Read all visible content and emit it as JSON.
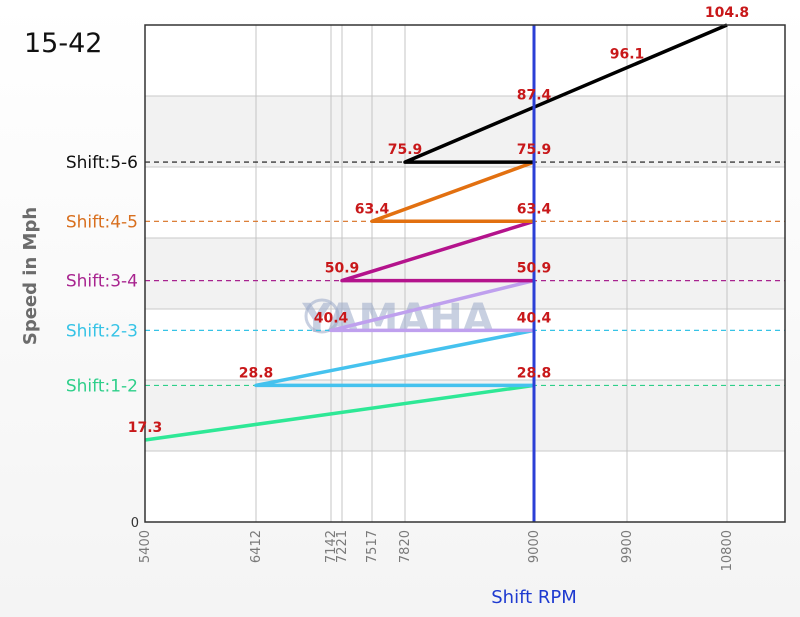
{
  "chart_data": {
    "type": "line",
    "title": "15-42",
    "xlabel": "Shift RPM",
    "ylabel": "Speed in Mph",
    "x_scale": "custom-nonlinear",
    "xlim": [
      5400,
      10800
    ],
    "ylim": [
      0,
      104.8
    ],
    "grid": true,
    "x_ticks": [
      5400,
      6412,
      7142,
      7221,
      7517,
      7820,
      9000,
      9900,
      10800
    ],
    "y_ticks": [
      0
    ],
    "y_tick_labels": [
      "0"
    ],
    "watermark": "YAMAHA",
    "reference_line": {
      "x": 9000,
      "color": "#2b3fd6"
    },
    "shift_levels": [
      {
        "label": "Shift:1-2",
        "y": 28.8,
        "color": "#2ecf8a"
      },
      {
        "label": "Shift:2-3",
        "y": 40.4,
        "color": "#36c3e6"
      },
      {
        "label": "Shift:3-4",
        "y": 50.9,
        "color": "#a8248f"
      },
      {
        "label": "Shift:4-5",
        "y": 63.4,
        "color": "#d86f1e"
      },
      {
        "label": "Shift:5-6",
        "y": 75.9,
        "color": "#111111"
      }
    ],
    "series": [
      {
        "color": "#2ee896",
        "points": [
          [
            5400,
            17.3
          ],
          [
            9000,
            28.8
          ]
        ]
      },
      {
        "color": "#45c2ee",
        "points": [
          [
            9000,
            28.8
          ],
          [
            6412,
            28.8
          ],
          [
            9000,
            40.4
          ]
        ]
      },
      {
        "color": "#bfa0ee",
        "points": [
          [
            9000,
            40.4
          ],
          [
            7142,
            40.4
          ],
          [
            9000,
            50.9
          ]
        ]
      },
      {
        "color": "#b4138c",
        "points": [
          [
            9000,
            50.9
          ],
          [
            7221,
            50.9
          ],
          [
            9000,
            63.4
          ]
        ]
      },
      {
        "color": "#e27010",
        "points": [
          [
            9000,
            63.4
          ],
          [
            7517,
            63.4
          ],
          [
            9000,
            75.9
          ]
        ]
      },
      {
        "color": "#000000",
        "points": [
          [
            9000,
            75.9
          ],
          [
            7820,
            75.9
          ],
          [
            10800,
            104.8
          ]
        ]
      }
    ],
    "data_labels": [
      {
        "x": 5400,
        "y": 17.3,
        "text": "17.3"
      },
      {
        "x": 6412,
        "y": 28.8,
        "text": "28.8"
      },
      {
        "x": 9000,
        "y": 28.8,
        "text": "28.8"
      },
      {
        "x": 7142,
        "y": 40.4,
        "text": "40.4"
      },
      {
        "x": 9000,
        "y": 40.4,
        "text": "40.4"
      },
      {
        "x": 7221,
        "y": 50.9,
        "text": "50.9"
      },
      {
        "x": 9000,
        "y": 50.9,
        "text": "50.9"
      },
      {
        "x": 7517,
        "y": 63.4,
        "text": "63.4"
      },
      {
        "x": 9000,
        "y": 63.4,
        "text": "63.4"
      },
      {
        "x": 7820,
        "y": 75.9,
        "text": "75.9"
      },
      {
        "x": 9000,
        "y": 75.9,
        "text": "75.9"
      },
      {
        "x": 9000,
        "y": 87.4,
        "text": "87.4"
      },
      {
        "x": 9900,
        "y": 96.1,
        "text": "96.1"
      },
      {
        "x": 10800,
        "y": 104.8,
        "text": "104.8"
      }
    ]
  }
}
